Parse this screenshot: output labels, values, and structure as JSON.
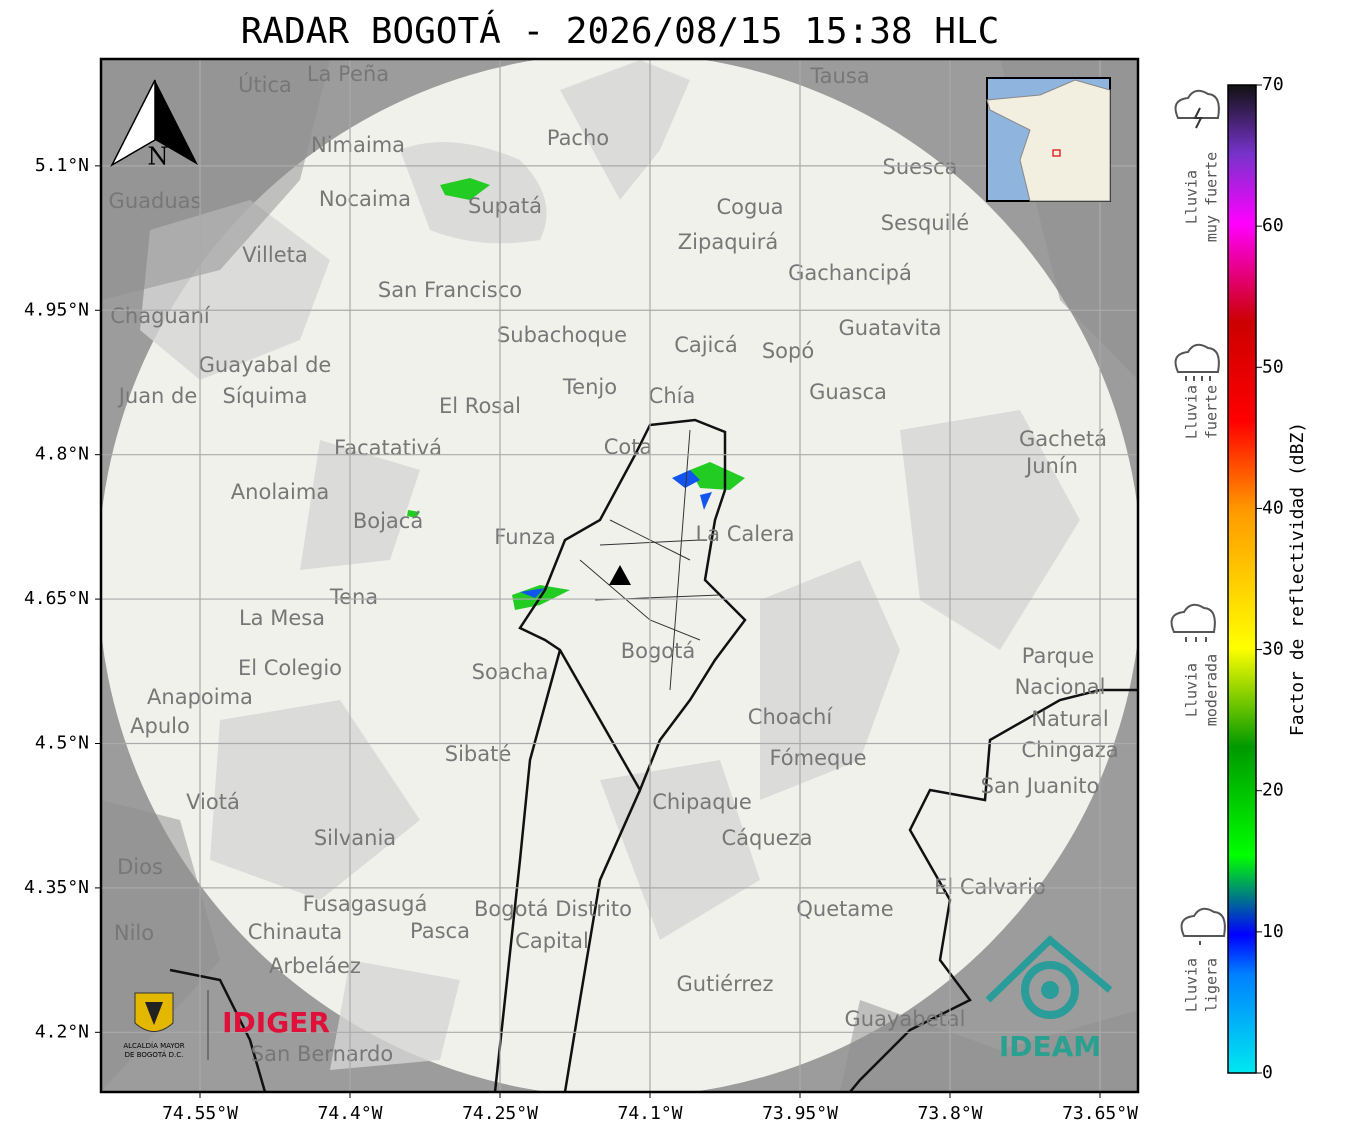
{
  "title": "RADAR BOGOTÁ - 2026/08/15 15:38 HLC",
  "map": {
    "xlim": [
      -74.649,
      -73.612
    ],
    "ylim": [
      4.138,
      5.211
    ],
    "xticks": [
      {
        "value": -74.55,
        "label": "74.55°W"
      },
      {
        "value": -74.4,
        "label": "74.4°W"
      },
      {
        "value": -74.25,
        "label": "74.25°W"
      },
      {
        "value": -74.1,
        "label": "74.1°W"
      },
      {
        "value": -73.95,
        "label": "73.95°W"
      },
      {
        "value": -73.8,
        "label": "73.8°W"
      },
      {
        "value": -73.65,
        "label": "73.65°W"
      }
    ],
    "yticks": [
      {
        "value": 5.1,
        "label": "5.1°N"
      },
      {
        "value": 4.95,
        "label": "4.95°N"
      },
      {
        "value": 4.8,
        "label": "4.8°N"
      },
      {
        "value": 4.65,
        "label": "4.65°N"
      },
      {
        "value": 4.5,
        "label": "4.5°N"
      },
      {
        "value": 4.35,
        "label": "4.35°N"
      },
      {
        "value": 4.2,
        "label": "4.2°N"
      }
    ],
    "north_label": "N",
    "places": [
      "La Peña",
      "Útica",
      "Tausa",
      "Pacho",
      "Nimaima",
      "Suesca",
      "Guaduas",
      "Nocaima",
      "Supatá",
      "Cogua",
      "Sesquilé",
      "Zipaquirá",
      "Villeta",
      "Gachancipá",
      "San Francisco",
      "Chaguaní",
      "Guatavita",
      "Subachoque",
      "Cajicá",
      "Sopó",
      "Guayabal de",
      "Síquima",
      "Tenjo",
      "Guasca",
      "Juan de",
      "Chía",
      "El Rosal",
      "Gachetá",
      "Facatativá",
      "Cota",
      "Junín",
      "Anolaima",
      "Bojacá",
      "La Calera",
      "Funza",
      "Tena",
      "La Mesa",
      "Bogotá",
      "Parque",
      "Nacional",
      "Natural",
      "Chingaza",
      "El Colegio",
      "Soacha",
      "Anapoima",
      "Apulo",
      "Choachí",
      "Sibaté",
      "Fómeque",
      "San Juanito",
      "Viotá",
      "Chipaque",
      "Silvania",
      "Cáqueza",
      "Dios",
      "El Calvario",
      "Fusagasugá",
      "Bogotá Distrito",
      "Quetame",
      "Nilo",
      "Chinauta",
      "Pasca",
      "Capital",
      "Arbeláez",
      "Gutiérrez",
      "Guayabetal",
      "San Bernardo"
    ]
  },
  "colorbar": {
    "label": "Factor de reflectividad (dBZ)",
    "lim": [
      0,
      70
    ],
    "ticks": [
      0,
      10,
      20,
      30,
      40,
      50,
      60,
      70
    ]
  },
  "rain_levels": [
    {
      "lines": [
        "Lluvia",
        "muy fuerte"
      ]
    },
    {
      "lines": [
        "Lluvia",
        "fuerte"
      ]
    },
    {
      "lines": [
        "Lluvia",
        "moderada"
      ]
    },
    {
      "lines": [
        "Lluvia",
        "ligera"
      ]
    }
  ],
  "logos": {
    "alcaldia": [
      "ALCALDÍA MAYOR",
      "DE BOGOTÁ D.C."
    ],
    "idiger": "IDIGER",
    "ideam": "IDEAM"
  }
}
